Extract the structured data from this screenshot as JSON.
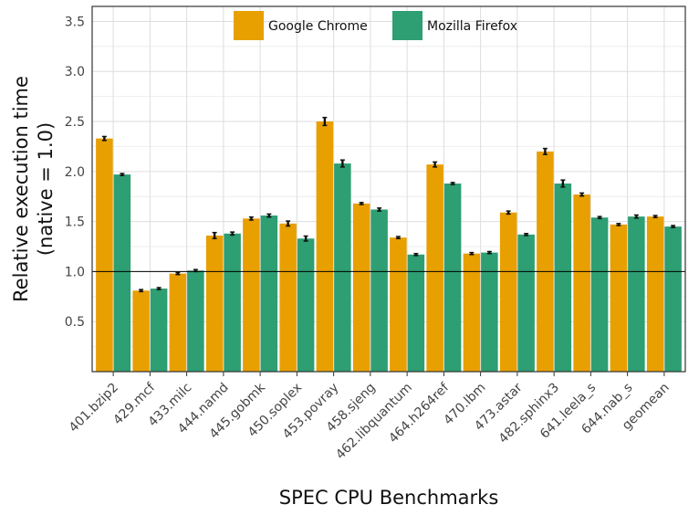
{
  "chart_data": {
    "type": "bar",
    "xlabel": "SPEC CPU Benchmarks",
    "ylabel_lines": [
      "Relative execution time",
      "(native = 1.0)"
    ],
    "ylim": [
      0,
      3.65
    ],
    "yticks": [
      "0.5",
      "1.0",
      "1.5",
      "2.0",
      "2.5",
      "3.0",
      "3.5"
    ],
    "reference_line": 1.0,
    "grid": true,
    "legend_position": "top-center",
    "categories": [
      "401.bzip2",
      "429.mcf",
      "433.milc",
      "444.namd",
      "445.gobmk",
      "450.soplex",
      "453.povray",
      "458.sjeng",
      "462.libquantum",
      "464.h264ref",
      "470.lbm",
      "473.astar",
      "482.sphinx3",
      "641.leela_s",
      "644.nab_s",
      "geomean"
    ],
    "series": [
      {
        "name": "Google Chrome",
        "color": "#e89f00",
        "values": [
          2.33,
          0.81,
          0.98,
          1.36,
          1.53,
          1.48,
          2.5,
          1.68,
          1.34,
          2.07,
          1.18,
          1.59,
          2.2,
          1.77,
          1.47,
          1.55
        ],
        "errors": [
          0.02,
          0.01,
          0.01,
          0.03,
          0.015,
          0.025,
          0.04,
          0.01,
          0.01,
          0.025,
          0.01,
          0.015,
          0.03,
          0.015,
          0.01,
          0.01
        ]
      },
      {
        "name": "Mozilla Firefox",
        "color": "#2e9e73",
        "values": [
          1.97,
          0.83,
          1.01,
          1.38,
          1.56,
          1.33,
          2.08,
          1.62,
          1.17,
          1.88,
          1.19,
          1.37,
          1.88,
          1.54,
          1.55,
          1.45
        ],
        "errors": [
          0.01,
          0.01,
          0.01,
          0.015,
          0.015,
          0.025,
          0.035,
          0.015,
          0.01,
          0.01,
          0.01,
          0.01,
          0.035,
          0.01,
          0.015,
          0.01
        ]
      }
    ]
  }
}
